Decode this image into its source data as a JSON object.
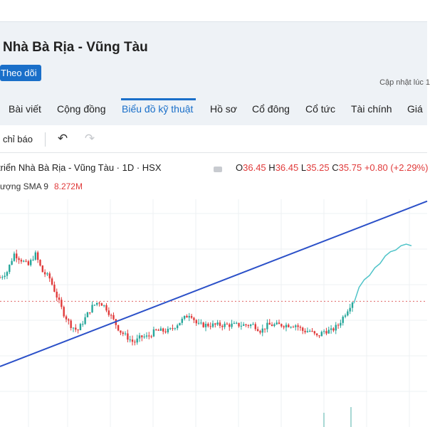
{
  "company": {
    "title": "Nhà Bà Rịa - Vũng Tàu",
    "follow_label": "Theo dõi",
    "updated_label": "Cập nhật lúc  1"
  },
  "tabs": [
    {
      "label": "Bài viết",
      "active": false
    },
    {
      "label": "Cộng đồng",
      "active": false
    },
    {
      "label": "Biểu đồ kỹ thuật",
      "active": true
    },
    {
      "label": "Hồ sơ",
      "active": false
    },
    {
      "label": "Cổ đông",
      "active": false
    },
    {
      "label": "Cổ tức",
      "active": false
    },
    {
      "label": "Tài chính",
      "active": false
    },
    {
      "label": "Giá",
      "active": false
    }
  ],
  "toolbar": {
    "indicators_label": "chỉ báo",
    "undo_icon": "undo-icon",
    "redo_icon": "redo-icon"
  },
  "legend": {
    "symbol_title": "triển Nhà Bà Rịa - Vũng Tàu · 1D · HSX",
    "o_label": "O",
    "o_value": "36.45",
    "h_label": "H",
    "h_value": "36.45",
    "l_label": "L",
    "l_value": "35.25",
    "c_label": "C",
    "c_value": "35.75",
    "change": "+0.80 (+2.29%)",
    "volume_label": "ượng  SMA 9",
    "volume_value": "8.272M"
  },
  "colors": {
    "accent": "#1a6fc9",
    "up": "#26a69a",
    "down": "#e03a3a",
    "trendline": "#2b50c8",
    "projection": "#4fc3c8"
  },
  "chart_data": {
    "type": "line",
    "title": "",
    "xlabel": "",
    "ylabel": "",
    "description_series": [
      {
        "name": "",
        "values": [
          33,
          34,
          37,
          36,
          35,
          37,
          34,
          33,
          30,
          27,
          25,
          24,
          26,
          28,
          29,
          28,
          26,
          24,
          23,
          22,
          23,
          23,
          24,
          24,
          24,
          25,
          26,
          27,
          25,
          25,
          25,
          25,
          25,
          25,
          25,
          25,
          25,
          24,
          25,
          25,
          25,
          25,
          25,
          24,
          24,
          23,
          24,
          24,
          25,
          27,
          29
        ]
      },
      {
        "name": "",
        "values": [
          29,
          31,
          33,
          33,
          35,
          35,
          37,
          37,
          38,
          38,
          39,
          38
        ]
      }
    ],
    "reference_price": 29,
    "trendline_endpoints": [
      [
        0,
        18
      ],
      [
        50,
        41
      ]
    ],
    "grid": true
  }
}
